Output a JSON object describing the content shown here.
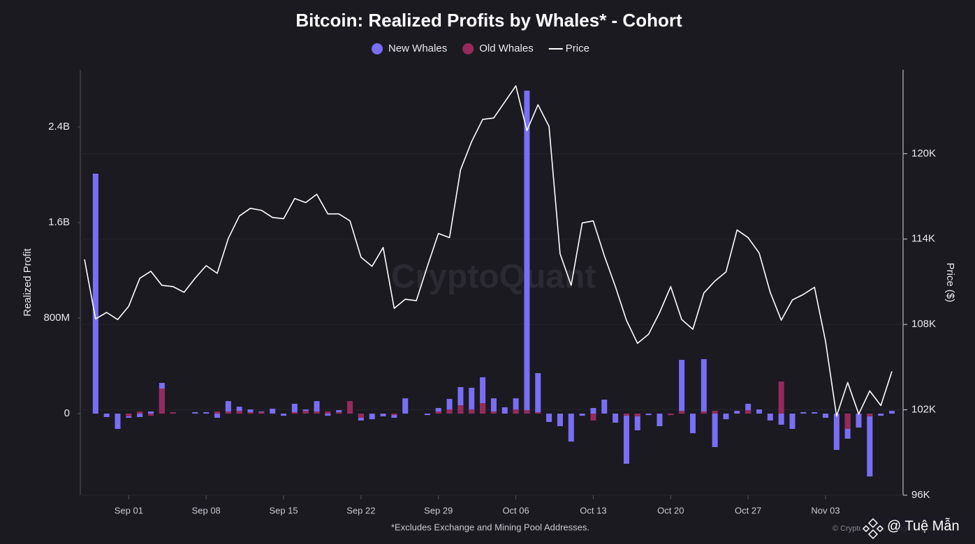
{
  "chart_data": {
    "type": "bar",
    "title": "Bitcoin: Realized Profits by Whales* - Cohort",
    "ylabel": "Realized Profit",
    "y2label": "Price ($)",
    "footnote": "*Excludes Exchange and Mining Pool Addresses.",
    "watermark": "CryptoQuant",
    "credit": "© CryptoQuant. All rights reserved.",
    "author": "@ Tuệ Mẫn",
    "legend": "top",
    "grid": true,
    "ylim": [
      -683000000,
      2879000000
    ],
    "yticks": [
      0,
      {
        "value": 800000000,
        "label": "800M"
      },
      {
        "value": 1600000000,
        "label": "1.6B"
      },
      {
        "value": 2400000000,
        "label": "2.4B"
      }
    ],
    "y2lim": [
      96000,
      125900
    ],
    "y2ticks": [
      {
        "value": 96000,
        "label": "96K"
      },
      {
        "value": 102000,
        "label": "102K"
      },
      {
        "value": 108000,
        "label": "108K"
      },
      {
        "value": 114000,
        "label": "114K"
      },
      {
        "value": 120000,
        "label": "120K"
      }
    ],
    "categories": [
      null,
      null,
      null,
      null,
      "Sep 01",
      null,
      null,
      null,
      null,
      null,
      null,
      "Sep 08",
      null,
      null,
      null,
      null,
      null,
      null,
      "Sep 15",
      null,
      null,
      null,
      null,
      null,
      null,
      "Sep 22",
      null,
      null,
      null,
      null,
      null,
      null,
      "Sep 29",
      null,
      null,
      null,
      null,
      null,
      null,
      "Oct 06",
      null,
      null,
      null,
      null,
      null,
      null,
      "Oct 13",
      null,
      null,
      null,
      null,
      null,
      null,
      "Oct 20",
      null,
      null,
      null,
      null,
      null,
      null,
      "Oct 27",
      null,
      null,
      null,
      null,
      null,
      null,
      "Nov 03",
      null,
      null,
      null,
      null,
      null,
      null
    ],
    "series": [
      {
        "name": "New Whales",
        "type": "bar",
        "color": "#7a6ef5",
        "values": [
          0,
          2009000000,
          -29000000,
          -128000000,
          -35000000,
          -29000000,
          18000000,
          257000000,
          12000000,
          0,
          12000000,
          12000000,
          -35000000,
          105000000,
          58000000,
          35000000,
          18000000,
          41000000,
          -18000000,
          82000000,
          35000000,
          105000000,
          -18000000,
          29000000,
          12000000,
          -58000000,
          -47000000,
          -23000000,
          -35000000,
          128000000,
          0,
          -12000000,
          47000000,
          123000000,
          222000000,
          216000000,
          304000000,
          128000000,
          53000000,
          128000000,
          2704000000,
          339000000,
          -70000000,
          -105000000,
          -234000000,
          -18000000,
          47000000,
          117000000,
          -76000000,
          -420000000,
          -140000000,
          -12000000,
          -105000000,
          -12000000,
          450000000,
          -164000000,
          456000000,
          -280000000,
          -47000000,
          23000000,
          82000000,
          35000000,
          -58000000,
          -93000000,
          -128000000,
          12000000,
          12000000,
          -35000000,
          -304000000,
          -210000000,
          -117000000,
          -526000000,
          -18000000,
          23000000
        ]
      },
      {
        "name": "Old Whales",
        "type": "bar",
        "color": "#962a5c",
        "values": [
          0,
          0,
          0,
          0,
          -23000000,
          18000000,
          -18000000,
          210000000,
          12000000,
          0,
          0,
          0,
          18000000,
          18000000,
          23000000,
          12000000,
          12000000,
          0,
          0,
          12000000,
          23000000,
          18000000,
          18000000,
          12000000,
          105000000,
          -35000000,
          0,
          0,
          -12000000,
          0,
          0,
          0,
          18000000,
          35000000,
          70000000,
          35000000,
          88000000,
          18000000,
          0,
          35000000,
          29000000,
          12000000,
          0,
          0,
          0,
          0,
          -58000000,
          0,
          0,
          -18000000,
          -23000000,
          0,
          0,
          -12000000,
          23000000,
          0,
          18000000,
          23000000,
          0,
          0,
          29000000,
          0,
          0,
          269000000,
          0,
          0,
          0,
          0,
          0,
          -128000000,
          0,
          -23000000,
          0,
          0
        ]
      },
      {
        "name": "Price",
        "type": "line",
        "axis": "y2",
        "color": "#ffffff",
        "values": [
          112570,
          108390,
          108840,
          108340,
          109280,
          111250,
          111740,
          110750,
          110660,
          110260,
          111250,
          112130,
          111590,
          114050,
          115620,
          116160,
          116020,
          115520,
          115430,
          116850,
          116560,
          117150,
          115770,
          115770,
          115280,
          112720,
          112080,
          113410,
          109130,
          109770,
          109670,
          112080,
          114390,
          114100,
          118870,
          120840,
          122410,
          122510,
          123640,
          124770,
          121620,
          123440,
          121920,
          112970,
          110750,
          115130,
          115280,
          112820,
          110660,
          108300,
          106670,
          107310,
          108840,
          110660,
          108340,
          107660,
          110210,
          111050,
          111690,
          114640,
          114100,
          113020,
          110260,
          108300,
          109720,
          110110,
          110610,
          106820,
          101560,
          103920,
          101700,
          103330,
          102300,
          104700
        ]
      }
    ]
  }
}
